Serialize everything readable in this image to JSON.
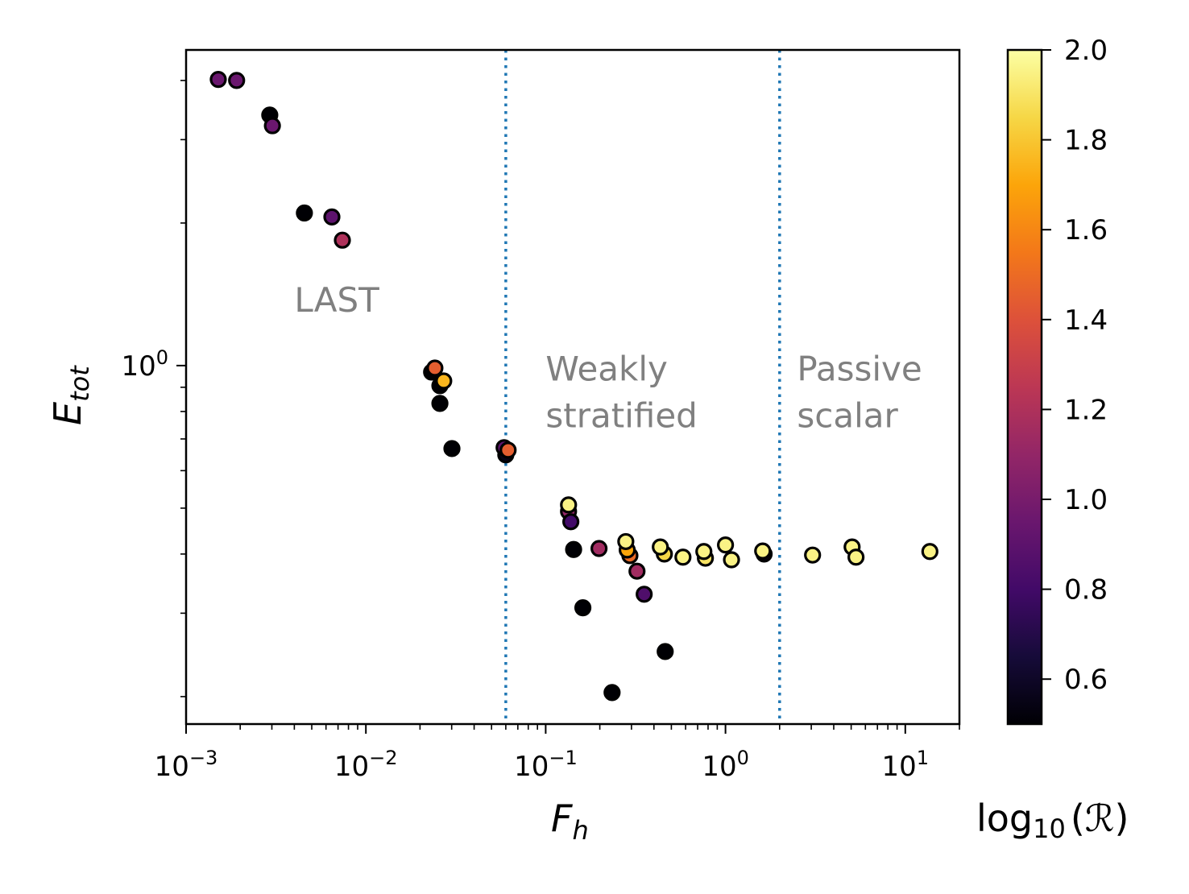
{
  "chart_data": {
    "type": "scatter",
    "title": "",
    "xlabel": "F_h",
    "ylabel": "E_tot",
    "xscale": "log",
    "yscale": "log",
    "xlim": [
      0.001,
      20
    ],
    "ylim": [
      0.175,
      4.64
    ],
    "x_ticks": [
      {
        "value": 0.001,
        "base": "10",
        "exp": "−3"
      },
      {
        "value": 0.01,
        "base": "10",
        "exp": "−2"
      },
      {
        "value": 0.1,
        "base": "10",
        "exp": "−1"
      },
      {
        "value": 1,
        "base": "10",
        "exp": "0"
      },
      {
        "value": 10,
        "base": "10",
        "exp": "1"
      }
    ],
    "y_ticks": [
      {
        "value": 1,
        "base": "10",
        "exp": "0"
      }
    ],
    "grid": false,
    "vlines": [
      {
        "x": 0.06,
        "style": "dotted",
        "color": "#1f77b4"
      },
      {
        "x": 2.0,
        "style": "dotted",
        "color": "#1f77b4"
      }
    ],
    "annotations": [
      {
        "lines": [
          "LAST"
        ],
        "x": 0.004,
        "y": 1.3
      },
      {
        "lines": [
          "Weakly",
          "stratified"
        ],
        "x": 0.1,
        "y": 0.93
      },
      {
        "lines": [
          "Passive",
          "scalar"
        ],
        "x": 2.5,
        "y": 0.93
      }
    ],
    "colorbar": {
      "label_main": "log",
      "label_sub": "10",
      "label_arg": "(ℛ)",
      "colormap": "inferno",
      "range": [
        0.5,
        2.0
      ],
      "ticks": [
        "0.6",
        "0.8",
        "1.0",
        "1.2",
        "1.4",
        "1.6",
        "1.8",
        "2.0"
      ]
    },
    "points": [
      {
        "x": 0.00151,
        "y": 4.02,
        "c": 0.95
      },
      {
        "x": 0.00191,
        "y": 4.0,
        "c": 0.95
      },
      {
        "x": 0.00292,
        "y": 3.38,
        "c": 0.5
      },
      {
        "x": 0.00302,
        "y": 3.21,
        "c": 0.95
      },
      {
        "x": 0.00455,
        "y": 2.1,
        "c": 0.5
      },
      {
        "x": 0.00647,
        "y": 2.06,
        "c": 0.9
      },
      {
        "x": 0.0074,
        "y": 1.84,
        "c": 1.2
      },
      {
        "x": 0.0232,
        "y": 0.969,
        "c": 0.5
      },
      {
        "x": 0.0242,
        "y": 0.988,
        "c": 1.45
      },
      {
        "x": 0.0258,
        "y": 0.907,
        "c": 0.5
      },
      {
        "x": 0.0271,
        "y": 0.928,
        "c": 1.75
      },
      {
        "x": 0.0258,
        "y": 0.832,
        "c": 0.5
      },
      {
        "x": 0.0301,
        "y": 0.668,
        "c": 0.5
      },
      {
        "x": 0.06,
        "y": 0.648,
        "c": 0.55
      },
      {
        "x": 0.0587,
        "y": 0.671,
        "c": 0.9
      },
      {
        "x": 0.0618,
        "y": 0.663,
        "c": 1.45
      },
      {
        "x": 0.134,
        "y": 0.492,
        "c": 1.1
      },
      {
        "x": 0.138,
        "y": 0.468,
        "c": 0.8
      },
      {
        "x": 0.134,
        "y": 0.508,
        "c": 1.95
      },
      {
        "x": 0.143,
        "y": 0.409,
        "c": 0.5
      },
      {
        "x": 0.161,
        "y": 0.308,
        "c": 0.5
      },
      {
        "x": 0.198,
        "y": 0.411,
        "c": 1.15
      },
      {
        "x": 0.234,
        "y": 0.204,
        "c": 0.5
      },
      {
        "x": 0.322,
        "y": 0.368,
        "c": 1.15
      },
      {
        "x": 0.353,
        "y": 0.329,
        "c": 0.85
      },
      {
        "x": 0.294,
        "y": 0.397,
        "c": 1.5
      },
      {
        "x": 0.284,
        "y": 0.408,
        "c": 1.7
      },
      {
        "x": 0.279,
        "y": 0.425,
        "c": 1.95
      },
      {
        "x": 0.462,
        "y": 0.249,
        "c": 0.5
      },
      {
        "x": 0.457,
        "y": 0.4,
        "c": 1.85
      },
      {
        "x": 0.434,
        "y": 0.414,
        "c": 1.95
      },
      {
        "x": 0.58,
        "y": 0.394,
        "c": 1.95
      },
      {
        "x": 0.773,
        "y": 0.392,
        "c": 1.9
      },
      {
        "x": 0.758,
        "y": 0.405,
        "c": 1.95
      },
      {
        "x": 1.0,
        "y": 0.418,
        "c": 1.95
      },
      {
        "x": 1.08,
        "y": 0.389,
        "c": 1.95
      },
      {
        "x": 1.64,
        "y": 0.4,
        "c": 0.55
      },
      {
        "x": 1.61,
        "y": 0.406,
        "c": 1.95
      },
      {
        "x": 3.05,
        "y": 0.398,
        "c": 1.95
      },
      {
        "x": 5.06,
        "y": 0.414,
        "c": 1.95
      },
      {
        "x": 5.32,
        "y": 0.394,
        "c": 1.95
      },
      {
        "x": 13.7,
        "y": 0.405,
        "c": 1.95
      }
    ]
  }
}
